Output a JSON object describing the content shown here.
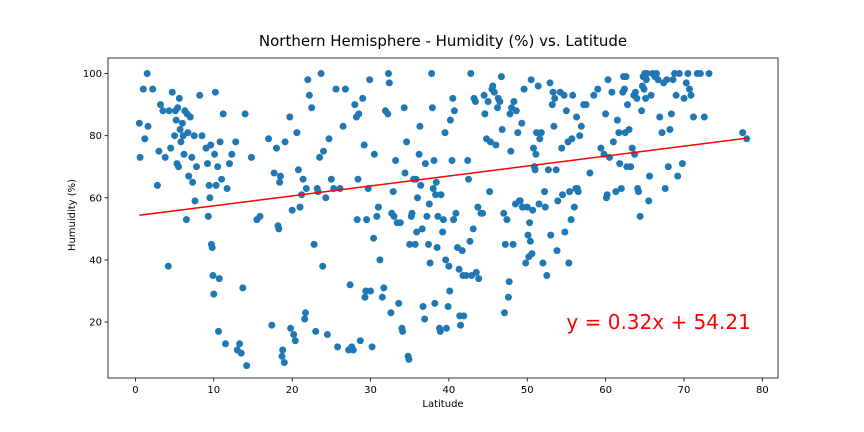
{
  "chart_data": {
    "type": "scatter",
    "title": "Northern Hemisphere - Humidity (%) vs. Latitude",
    "xlabel": "Latitude",
    "ylabel": "Humuidity (%)",
    "xlim": [
      -3.5,
      82
    ],
    "ylim": [
      2,
      105
    ],
    "xticks": [
      0,
      10,
      20,
      30,
      40,
      50,
      60,
      70,
      80
    ],
    "yticks": [
      20,
      40,
      60,
      80,
      100
    ],
    "grid": false,
    "point_color": "#1f77b4",
    "regression": {
      "slope": 0.32,
      "intercept": 54.21,
      "x_range": [
        0.5,
        78.2
      ],
      "color": "#ff0000",
      "equation": "y = 0.32x + 54.21",
      "equation_x": 55,
      "equation_y": 20
    },
    "points": [
      [
        0.5,
        84
      ],
      [
        0.6,
        73
      ],
      [
        1,
        95
      ],
      [
        1.2,
        79
      ],
      [
        1.5,
        100
      ],
      [
        1.6,
        83
      ],
      [
        2.2,
        95
      ],
      [
        2.8,
        64
      ],
      [
        3,
        75
      ],
      [
        3.2,
        90
      ],
      [
        3.5,
        88
      ],
      [
        3.8,
        73
      ],
      [
        4.2,
        38
      ],
      [
        4.3,
        88
      ],
      [
        4.5,
        76
      ],
      [
        4.7,
        94
      ],
      [
        5,
        80
      ],
      [
        5.1,
        88
      ],
      [
        5.2,
        85
      ],
      [
        5.3,
        71
      ],
      [
        5.4,
        89
      ],
      [
        5.5,
        70
      ],
      [
        5.6,
        92
      ],
      [
        5.7,
        82
      ],
      [
        5.8,
        78
      ],
      [
        6,
        84
      ],
      [
        6.1,
        80
      ],
      [
        6.2,
        74
      ],
      [
        6.3,
        88
      ],
      [
        6.5,
        53
      ],
      [
        6.6,
        87
      ],
      [
        6.7,
        81
      ],
      [
        6.8,
        67
      ],
      [
        7,
        86
      ],
      [
        7.2,
        73
      ],
      [
        7.3,
        65
      ],
      [
        7.5,
        80
      ],
      [
        7.6,
        59
      ],
      [
        7.8,
        70
      ],
      [
        8.2,
        93
      ],
      [
        8.5,
        80
      ],
      [
        9,
        76
      ],
      [
        9.2,
        71
      ],
      [
        9.3,
        54
      ],
      [
        9.4,
        64
      ],
      [
        9.5,
        60
      ],
      [
        9.6,
        77
      ],
      [
        9.7,
        45
      ],
      [
        9.8,
        44
      ],
      [
        9.9,
        35
      ],
      [
        10,
        29
      ],
      [
        10.1,
        74
      ],
      [
        10.2,
        94
      ],
      [
        10.3,
        64
      ],
      [
        10.5,
        70
      ],
      [
        10.6,
        17
      ],
      [
        10.7,
        34
      ],
      [
        10.8,
        78
      ],
      [
        11,
        66
      ],
      [
        11.2,
        87
      ],
      [
        11.5,
        13
      ],
      [
        11.7,
        63
      ],
      [
        12,
        71
      ],
      [
        12.3,
        74
      ],
      [
        12.8,
        78
      ],
      [
        13,
        11
      ],
      [
        13.3,
        13
      ],
      [
        13.5,
        10
      ],
      [
        13.7,
        31
      ],
      [
        14,
        87
      ],
      [
        14.2,
        6
      ],
      [
        14.8,
        73
      ],
      [
        15.5,
        53
      ],
      [
        15.9,
        54
      ],
      [
        17,
        79
      ],
      [
        17.4,
        19
      ],
      [
        17.7,
        68
      ],
      [
        18,
        76
      ],
      [
        18.2,
        51
      ],
      [
        18.3,
        50
      ],
      [
        18.4,
        65
      ],
      [
        18.5,
        67
      ],
      [
        18.7,
        9
      ],
      [
        18.8,
        11
      ],
      [
        19,
        7
      ],
      [
        19.1,
        78
      ],
      [
        19.7,
        86
      ],
      [
        19.8,
        18
      ],
      [
        20,
        56
      ],
      [
        20.2,
        16
      ],
      [
        20.4,
        14
      ],
      [
        20.6,
        81
      ],
      [
        20.8,
        69
      ],
      [
        21,
        57
      ],
      [
        21.2,
        61
      ],
      [
        21.4,
        66
      ],
      [
        21.6,
        21
      ],
      [
        21.7,
        23
      ],
      [
        21.8,
        63
      ],
      [
        22,
        98
      ],
      [
        22.2,
        93
      ],
      [
        22.5,
        89
      ],
      [
        22.8,
        45
      ],
      [
        23,
        17
      ],
      [
        23.2,
        63
      ],
      [
        23.3,
        62
      ],
      [
        23.5,
        73
      ],
      [
        23.7,
        100
      ],
      [
        23.9,
        38
      ],
      [
        24,
        75
      ],
      [
        24.3,
        60
      ],
      [
        24.5,
        16
      ],
      [
        24.7,
        79
      ],
      [
        25,
        66
      ],
      [
        25.3,
        63
      ],
      [
        25.6,
        95
      ],
      [
        25.8,
        12
      ],
      [
        26.1,
        63
      ],
      [
        26.5,
        83
      ],
      [
        26.8,
        95
      ],
      [
        27.2,
        11
      ],
      [
        27.4,
        32
      ],
      [
        27.6,
        12
      ],
      [
        27.8,
        11
      ],
      [
        28,
        90
      ],
      [
        28.2,
        86
      ],
      [
        28.3,
        53
      ],
      [
        28.4,
        66
      ],
      [
        28.5,
        87
      ],
      [
        28.7,
        14
      ],
      [
        29,
        92
      ],
      [
        29.2,
        77
      ],
      [
        29.3,
        28
      ],
      [
        29.4,
        30
      ],
      [
        29.5,
        53
      ],
      [
        29.7,
        63
      ],
      [
        29.9,
        98
      ],
      [
        30,
        30
      ],
      [
        30.2,
        12
      ],
      [
        30.4,
        47
      ],
      [
        30.5,
        74
      ],
      [
        30.8,
        54
      ],
      [
        31,
        57
      ],
      [
        31.2,
        40
      ],
      [
        31.5,
        28
      ],
      [
        31.7,
        31
      ],
      [
        31.9,
        88
      ],
      [
        32.2,
        87
      ],
      [
        32.3,
        100
      ],
      [
        32.4,
        97
      ],
      [
        32.6,
        23
      ],
      [
        32.7,
        55
      ],
      [
        32.9,
        62
      ],
      [
        33,
        54
      ],
      [
        33.2,
        72
      ],
      [
        33.4,
        52
      ],
      [
        33.6,
        26
      ],
      [
        33.8,
        52
      ],
      [
        34,
        18
      ],
      [
        34.1,
        17
      ],
      [
        34.3,
        89
      ],
      [
        34.4,
        68
      ],
      [
        34.6,
        78
      ],
      [
        34.8,
        9
      ],
      [
        34.9,
        8
      ],
      [
        35,
        45
      ],
      [
        35.2,
        54
      ],
      [
        35.3,
        55
      ],
      [
        35.5,
        66
      ],
      [
        35.7,
        45
      ],
      [
        35.8,
        66
      ],
      [
        35.9,
        49
      ],
      [
        36,
        60
      ],
      [
        36.2,
        74
      ],
      [
        36.3,
        83
      ],
      [
        36.4,
        64
      ],
      [
        36.6,
        50
      ],
      [
        36.7,
        25
      ],
      [
        36.9,
        21
      ],
      [
        37,
        71
      ],
      [
        37.2,
        54
      ],
      [
        37.4,
        45
      ],
      [
        37.5,
        58
      ],
      [
        37.6,
        39
      ],
      [
        37.8,
        100
      ],
      [
        37.9,
        89
      ],
      [
        38,
        63
      ],
      [
        38.1,
        72
      ],
      [
        38.2,
        26
      ],
      [
        38.3,
        61
      ],
      [
        38.4,
        65
      ],
      [
        38.5,
        44
      ],
      [
        38.6,
        54
      ],
      [
        38.8,
        18
      ],
      [
        38.9,
        17
      ],
      [
        39,
        61
      ],
      [
        39.2,
        49
      ],
      [
        39.3,
        53
      ],
      [
        39.5,
        81
      ],
      [
        39.6,
        40
      ],
      [
        39.7,
        18
      ],
      [
        39.9,
        25
      ],
      [
        40,
        38
      ],
      [
        40.1,
        30
      ],
      [
        40.2,
        85
      ],
      [
        40.4,
        72
      ],
      [
        40.5,
        92
      ],
      [
        40.6,
        53
      ],
      [
        40.7,
        88
      ],
      [
        40.9,
        55
      ],
      [
        41.1,
        44
      ],
      [
        41.3,
        37
      ],
      [
        41.4,
        22
      ],
      [
        41.5,
        19
      ],
      [
        41.7,
        43
      ],
      [
        41.8,
        35
      ],
      [
        41.9,
        22
      ],
      [
        42.2,
        35
      ],
      [
        42.4,
        72
      ],
      [
        42.5,
        66
      ],
      [
        42.7,
        46
      ],
      [
        42.8,
        100
      ],
      [
        42.9,
        35
      ],
      [
        43.1,
        50
      ],
      [
        43.2,
        92
      ],
      [
        43.4,
        91
      ],
      [
        43.5,
        36
      ],
      [
        43.7,
        57
      ],
      [
        43.8,
        34
      ],
      [
        44.1,
        55
      ],
      [
        44.3,
        55
      ],
      [
        44.5,
        93
      ],
      [
        44.6,
        87
      ],
      [
        44.8,
        79
      ],
      [
        45,
        91
      ],
      [
        45.2,
        62
      ],
      [
        45.3,
        78
      ],
      [
        45.5,
        95
      ],
      [
        45.6,
        96
      ],
      [
        45.8,
        94
      ],
      [
        46,
        77
      ],
      [
        46.2,
        89
      ],
      [
        46.3,
        92
      ],
      [
        46.5,
        91
      ],
      [
        46.7,
        99
      ],
      [
        46.8,
        82
      ],
      [
        47,
        55
      ],
      [
        47.1,
        23
      ],
      [
        47.2,
        45
      ],
      [
        47.4,
        53
      ],
      [
        47.6,
        28
      ],
      [
        47.7,
        33
      ],
      [
        47.8,
        87
      ],
      [
        47.9,
        75
      ],
      [
        48,
        89
      ],
      [
        48.2,
        45
      ],
      [
        48.3,
        91
      ],
      [
        48.5,
        58
      ],
      [
        48.6,
        88
      ],
      [
        48.8,
        81
      ],
      [
        49,
        59
      ],
      [
        49.1,
        59
      ],
      [
        49.3,
        84
      ],
      [
        49.4,
        57
      ],
      [
        49.6,
        95
      ],
      [
        49.8,
        39
      ],
      [
        50,
        57
      ],
      [
        50.1,
        48
      ],
      [
        50.2,
        41
      ],
      [
        50.3,
        52
      ],
      [
        50.4,
        46
      ],
      [
        50.5,
        98
      ],
      [
        50.6,
        42
      ],
      [
        50.7,
        56
      ],
      [
        50.8,
        76
      ],
      [
        50.9,
        70
      ],
      [
        51,
        69
      ],
      [
        51.1,
        74
      ],
      [
        51.2,
        81
      ],
      [
        51.4,
        96
      ],
      [
        51.5,
        58
      ],
      [
        51.6,
        79
      ],
      [
        51.8,
        81
      ],
      [
        52,
        39
      ],
      [
        52.2,
        62
      ],
      [
        52.3,
        57
      ],
      [
        52.5,
        35
      ],
      [
        52.7,
        69
      ],
      [
        52.9,
        97
      ],
      [
        53,
        48
      ],
      [
        53.2,
        90
      ],
      [
        53.3,
        94
      ],
      [
        53.4,
        83
      ],
      [
        53.5,
        92
      ],
      [
        53.7,
        69
      ],
      [
        53.8,
        43
      ],
      [
        53.9,
        59
      ],
      [
        54.2,
        94
      ],
      [
        54.4,
        76
      ],
      [
        54.5,
        61
      ],
      [
        54.7,
        93
      ],
      [
        54.8,
        49
      ],
      [
        55,
        88
      ],
      [
        55.2,
        78
      ],
      [
        55.3,
        39
      ],
      [
        55.4,
        62
      ],
      [
        55.6,
        53
      ],
      [
        55.7,
        79
      ],
      [
        55.8,
        93
      ],
      [
        56,
        57
      ],
      [
        56.2,
        63
      ],
      [
        56.3,
        86
      ],
      [
        56.4,
        63
      ],
      [
        56.5,
        62
      ],
      [
        56.7,
        80
      ],
      [
        56.9,
        83
      ],
      [
        57.2,
        90
      ],
      [
        57.5,
        90
      ],
      [
        58,
        68
      ],
      [
        58.5,
        93
      ],
      [
        59,
        95
      ],
      [
        59.4,
        76
      ],
      [
        59.8,
        74
      ],
      [
        60,
        87
      ],
      [
        60.1,
        60
      ],
      [
        60.2,
        61
      ],
      [
        60.3,
        98
      ],
      [
        60.5,
        73
      ],
      [
        60.8,
        94
      ],
      [
        61,
        78
      ],
      [
        61.3,
        62
      ],
      [
        61.5,
        85
      ],
      [
        61.7,
        81
      ],
      [
        61.8,
        71
      ],
      [
        62,
        63
      ],
      [
        62.2,
        94
      ],
      [
        62.3,
        99
      ],
      [
        62.4,
        95
      ],
      [
        62.5,
        81
      ],
      [
        62.6,
        99
      ],
      [
        62.7,
        70
      ],
      [
        62.8,
        90
      ],
      [
        63,
        82
      ],
      [
        63.2,
        70
      ],
      [
        63.4,
        76
      ],
      [
        63.6,
        93
      ],
      [
        63.7,
        74
      ],
      [
        63.8,
        94
      ],
      [
        64,
        92
      ],
      [
        64.1,
        63
      ],
      [
        64.2,
        62
      ],
      [
        64.4,
        54
      ],
      [
        64.6,
        88
      ],
      [
        64.7,
        96
      ],
      [
        64.8,
        99
      ],
      [
        64.9,
        95
      ],
      [
        65,
        100
      ],
      [
        65.1,
        92
      ],
      [
        65.2,
        98
      ],
      [
        65.3,
        100
      ],
      [
        65.5,
        59
      ],
      [
        65.6,
        67
      ],
      [
        65.8,
        93
      ],
      [
        66,
        100
      ],
      [
        66.3,
        99
      ],
      [
        66.5,
        100
      ],
      [
        66.7,
        98
      ],
      [
        66.9,
        86
      ],
      [
        67.2,
        81
      ],
      [
        67.4,
        97
      ],
      [
        67.6,
        63
      ],
      [
        67.8,
        98
      ],
      [
        68,
        70
      ],
      [
        68.2,
        82
      ],
      [
        68.4,
        87
      ],
      [
        68.6,
        98
      ],
      [
        68.8,
        100
      ],
      [
        69,
        93
      ],
      [
        69.2,
        67
      ],
      [
        69.4,
        100
      ],
      [
        69.8,
        71
      ],
      [
        70,
        92
      ],
      [
        70.3,
        97
      ],
      [
        70.5,
        100
      ],
      [
        70.7,
        95
      ],
      [
        70.9,
        93
      ],
      [
        71.2,
        86
      ],
      [
        71.7,
        100
      ],
      [
        72.1,
        100
      ],
      [
        72.6,
        86
      ],
      [
        73.2,
        100
      ],
      [
        77.5,
        81
      ],
      [
        78,
        79
      ]
    ]
  }
}
